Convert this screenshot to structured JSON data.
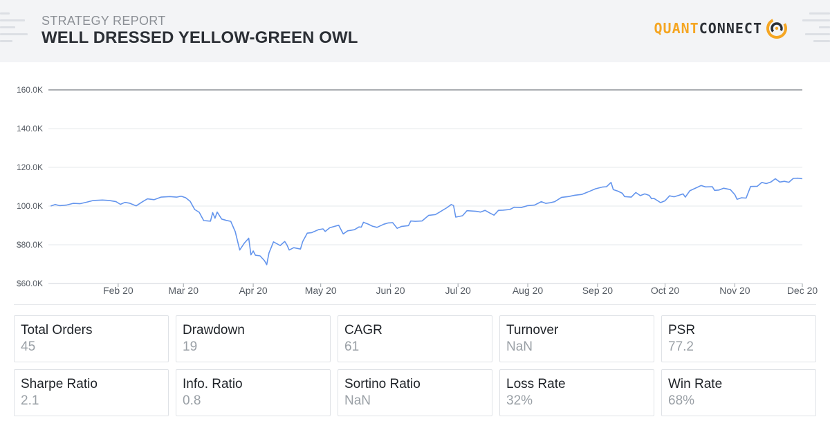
{
  "header": {
    "subtitle": "STRATEGY REPORT",
    "title": "WELL DRESSED YELLOW-GREEN OWL",
    "logo_part1": "QUANT",
    "logo_part2": "CONNECT",
    "logo_icon": "quantconnect-logo-icon",
    "brand_color": "#f5a623"
  },
  "chart_data": {
    "type": "line",
    "title": "",
    "xlabel": "",
    "ylabel": "",
    "ylim": [
      60000,
      160000
    ],
    "y_ticks": [
      {
        "value": 60000,
        "label": "$60.0K"
      },
      {
        "value": 80000,
        "label": "$80.0K"
      },
      {
        "value": 100000,
        "label": "100.0K"
      },
      {
        "value": 120000,
        "label": "120.0K"
      },
      {
        "value": 140000,
        "label": "140.0K"
      },
      {
        "value": 160000,
        "label": "160.0K"
      }
    ],
    "x_range": [
      "2020-01-01",
      "2020-12-01"
    ],
    "x_ticks": [
      {
        "date": "2020-02-01",
        "label": "Feb 20"
      },
      {
        "date": "2020-03-01",
        "label": "Mar 20"
      },
      {
        "date": "2020-04-01",
        "label": "Apr 20"
      },
      {
        "date": "2020-05-01",
        "label": "May 20"
      },
      {
        "date": "2020-06-01",
        "label": "Jun 20"
      },
      {
        "date": "2020-07-01",
        "label": "Jul 20"
      },
      {
        "date": "2020-08-01",
        "label": "Aug 20"
      },
      {
        "date": "2020-09-01",
        "label": "Sep 20"
      },
      {
        "date": "2020-10-01",
        "label": "Oct 20"
      },
      {
        "date": "2020-11-01",
        "label": "Nov 20"
      },
      {
        "date": "2020-12-01",
        "label": "Dec 20"
      }
    ],
    "grid": true,
    "line_color": "#6495ed",
    "series": [
      {
        "points": [
          [
            "2020-01-02",
            100000
          ],
          [
            "2020-01-04",
            100800
          ],
          [
            "2020-01-06",
            100200
          ],
          [
            "2020-01-09",
            100500
          ],
          [
            "2020-01-12",
            101400
          ],
          [
            "2020-01-15",
            101200
          ],
          [
            "2020-01-18",
            102000
          ],
          [
            "2020-01-21",
            102900
          ],
          [
            "2020-01-25",
            103100
          ],
          [
            "2020-01-28",
            102900
          ],
          [
            "2020-01-31",
            102300
          ],
          [
            "2020-02-02",
            100900
          ],
          [
            "2020-02-04",
            101900
          ],
          [
            "2020-02-06",
            101500
          ],
          [
            "2020-02-09",
            100100
          ],
          [
            "2020-02-12",
            102400
          ],
          [
            "2020-02-14",
            103700
          ],
          [
            "2020-02-17",
            103300
          ],
          [
            "2020-02-20",
            104600
          ],
          [
            "2020-02-24",
            104900
          ],
          [
            "2020-02-27",
            104600
          ],
          [
            "2020-02-29",
            105100
          ],
          [
            "2020-03-02",
            104300
          ],
          [
            "2020-03-04",
            102400
          ],
          [
            "2020-03-06",
            98200
          ],
          [
            "2020-03-08",
            96800
          ],
          [
            "2020-03-10",
            92500
          ],
          [
            "2020-03-12",
            92300
          ],
          [
            "2020-03-13",
            92200
          ],
          [
            "2020-03-14",
            96600
          ],
          [
            "2020-03-15",
            93700
          ],
          [
            "2020-03-16",
            96900
          ],
          [
            "2020-03-18",
            93300
          ],
          [
            "2020-03-20",
            92600
          ],
          [
            "2020-03-22",
            92100
          ],
          [
            "2020-03-24",
            86800
          ],
          [
            "2020-03-26",
            77300
          ],
          [
            "2020-03-28",
            80800
          ],
          [
            "2020-03-30",
            83400
          ],
          [
            "2020-03-31",
            74800
          ],
          [
            "2020-04-01",
            76800
          ],
          [
            "2020-04-02",
            74600
          ],
          [
            "2020-04-04",
            74300
          ],
          [
            "2020-04-06",
            71800
          ],
          [
            "2020-04-07",
            69700
          ],
          [
            "2020-04-08",
            75800
          ],
          [
            "2020-04-10",
            81500
          ],
          [
            "2020-04-13",
            79600
          ],
          [
            "2020-04-15",
            81700
          ],
          [
            "2020-04-16",
            79900
          ],
          [
            "2020-04-17",
            77300
          ],
          [
            "2020-04-19",
            78500
          ],
          [
            "2020-04-22",
            77800
          ],
          [
            "2020-04-23",
            81700
          ],
          [
            "2020-04-25",
            86000
          ],
          [
            "2020-04-27",
            86300
          ],
          [
            "2020-04-30",
            87800
          ],
          [
            "2020-05-02",
            88200
          ],
          [
            "2020-05-03",
            86900
          ],
          [
            "2020-05-05",
            88800
          ],
          [
            "2020-05-09",
            90100
          ],
          [
            "2020-05-11",
            85600
          ],
          [
            "2020-05-13",
            87200
          ],
          [
            "2020-05-16",
            87800
          ],
          [
            "2020-05-18",
            89200
          ],
          [
            "2020-05-19",
            89100
          ],
          [
            "2020-05-20",
            91600
          ],
          [
            "2020-05-22",
            90700
          ],
          [
            "2020-05-24",
            89600
          ],
          [
            "2020-05-26",
            89000
          ],
          [
            "2020-05-29",
            90600
          ],
          [
            "2020-05-31",
            91300
          ],
          [
            "2020-06-02",
            91400
          ],
          [
            "2020-06-04",
            88500
          ],
          [
            "2020-06-06",
            89500
          ],
          [
            "2020-06-09",
            89900
          ],
          [
            "2020-06-10",
            92300
          ],
          [
            "2020-06-12",
            92100
          ],
          [
            "2020-06-15",
            92300
          ],
          [
            "2020-06-18",
            95200
          ],
          [
            "2020-06-21",
            95600
          ],
          [
            "2020-06-23",
            97000
          ],
          [
            "2020-06-26",
            99100
          ],
          [
            "2020-06-28",
            100800
          ],
          [
            "2020-06-29",
            100300
          ],
          [
            "2020-06-30",
            94300
          ],
          [
            "2020-07-03",
            95000
          ],
          [
            "2020-07-05",
            97600
          ],
          [
            "2020-07-09",
            97300
          ],
          [
            "2020-07-11",
            96900
          ],
          [
            "2020-07-13",
            97800
          ],
          [
            "2020-07-15",
            96500
          ],
          [
            "2020-07-17",
            95300
          ],
          [
            "2020-07-19",
            97800
          ],
          [
            "2020-07-21",
            97900
          ],
          [
            "2020-07-24",
            98200
          ],
          [
            "2020-07-26",
            99400
          ],
          [
            "2020-07-29",
            99200
          ],
          [
            "2020-08-01",
            100200
          ],
          [
            "2020-08-04",
            100500
          ],
          [
            "2020-08-07",
            102300
          ],
          [
            "2020-08-09",
            101400
          ],
          [
            "2020-08-11",
            101700
          ],
          [
            "2020-08-13",
            102300
          ],
          [
            "2020-08-16",
            104500
          ],
          [
            "2020-08-19",
            104900
          ],
          [
            "2020-08-22",
            105600
          ],
          [
            "2020-08-25",
            106000
          ],
          [
            "2020-08-28",
            107400
          ],
          [
            "2020-08-31",
            108900
          ],
          [
            "2020-09-03",
            109800
          ],
          [
            "2020-09-05",
            110000
          ],
          [
            "2020-09-07",
            112200
          ],
          [
            "2020-09-08",
            108500
          ],
          [
            "2020-09-10",
            107700
          ],
          [
            "2020-09-12",
            106600
          ],
          [
            "2020-09-13",
            104900
          ],
          [
            "2020-09-16",
            104600
          ],
          [
            "2020-09-18",
            107000
          ],
          [
            "2020-09-20",
            105400
          ],
          [
            "2020-09-22",
            106300
          ],
          [
            "2020-09-24",
            105500
          ],
          [
            "2020-09-25",
            103800
          ],
          [
            "2020-09-26",
            104000
          ],
          [
            "2020-09-29",
            101800
          ],
          [
            "2020-10-01",
            102700
          ],
          [
            "2020-10-03",
            105300
          ],
          [
            "2020-10-05",
            104800
          ],
          [
            "2020-10-07",
            105500
          ],
          [
            "2020-10-09",
            106300
          ],
          [
            "2020-10-10",
            104600
          ],
          [
            "2020-10-12",
            107900
          ],
          [
            "2020-10-15",
            109500
          ],
          [
            "2020-10-17",
            110600
          ],
          [
            "2020-10-19",
            109900
          ],
          [
            "2020-10-22",
            110000
          ],
          [
            "2020-10-23",
            108100
          ],
          [
            "2020-10-25",
            108300
          ],
          [
            "2020-10-27",
            109200
          ],
          [
            "2020-10-30",
            108500
          ],
          [
            "2020-11-01",
            105900
          ],
          [
            "2020-11-02",
            103500
          ],
          [
            "2020-11-04",
            104300
          ],
          [
            "2020-11-06",
            104100
          ],
          [
            "2020-11-08",
            110100
          ],
          [
            "2020-11-11",
            110200
          ],
          [
            "2020-11-13",
            112200
          ],
          [
            "2020-11-15",
            111600
          ],
          [
            "2020-11-17",
            112400
          ],
          [
            "2020-11-19",
            114100
          ],
          [
            "2020-11-21",
            112400
          ],
          [
            "2020-11-23",
            112800
          ],
          [
            "2020-11-25",
            112300
          ],
          [
            "2020-11-27",
            114300
          ],
          [
            "2020-11-29",
            114400
          ],
          [
            "2020-12-01",
            114100
          ]
        ]
      }
    ]
  },
  "stats": [
    {
      "key": "total-orders",
      "label": "Total Orders",
      "value": "45"
    },
    {
      "key": "drawdown",
      "label": "Drawdown",
      "value": "19"
    },
    {
      "key": "cagr",
      "label": "CAGR",
      "value": "61"
    },
    {
      "key": "turnover",
      "label": "Turnover",
      "value": "NaN"
    },
    {
      "key": "psr",
      "label": "PSR",
      "value": "77.2"
    },
    {
      "key": "sharpe-ratio",
      "label": "Sharpe Ratio",
      "value": "2.1"
    },
    {
      "key": "info-ratio",
      "label": "Info. Ratio",
      "value": "0.8"
    },
    {
      "key": "sortino-ratio",
      "label": "Sortino Ratio",
      "value": "NaN"
    },
    {
      "key": "loss-rate",
      "label": "Loss Rate",
      "value": "32%"
    },
    {
      "key": "win-rate",
      "label": "Win Rate",
      "value": "68%"
    }
  ]
}
